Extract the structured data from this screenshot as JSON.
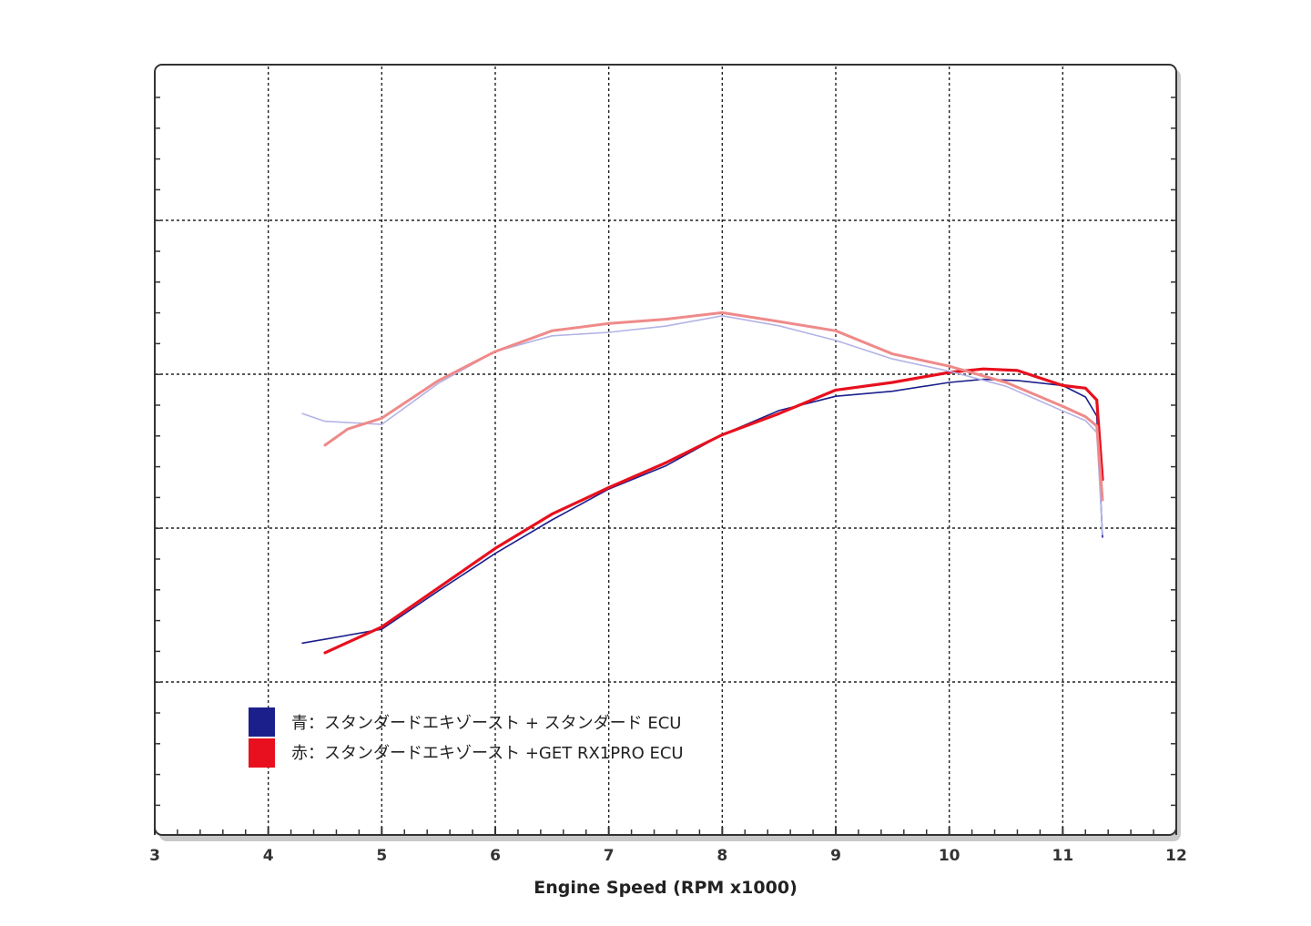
{
  "chart_data": {
    "type": "line",
    "title": "",
    "xlabel": "Engine Speed (RPM x1000)",
    "ylabel": "",
    "xlim": [
      3,
      12
    ],
    "x_ticks": [
      "3",
      "4",
      "5",
      "6",
      "7",
      "8",
      "9",
      "10",
      "11",
      "12"
    ],
    "grid": true,
    "legend_position": "bottom-left",
    "legend": [
      {
        "label": "青：スタンダードエキゾースト + スタンダード ECU",
        "color": "#1b1f8c"
      },
      {
        "label": "赤：スタンダードエキゾースト +GET RX1PRO ECU",
        "color": "#e8101e"
      }
    ],
    "series": [
      {
        "name": "青：スタンダードエキゾースト + スタンダード ECU",
        "color": "#1b1f8c",
        "quantity": "power",
        "points": [
          [
            4.3,
            0.498
          ],
          [
            4.5,
            0.508
          ],
          [
            5.0,
            0.534
          ],
          [
            5.5,
            0.634
          ],
          [
            6.0,
            0.731
          ],
          [
            6.5,
            0.818
          ],
          [
            7.0,
            0.898
          ],
          [
            7.5,
            0.958
          ],
          [
            8.0,
            1.039
          ],
          [
            8.5,
            1.102
          ],
          [
            9.0,
            1.139
          ],
          [
            9.5,
            1.152
          ],
          [
            10.0,
            1.175
          ],
          [
            10.3,
            1.183
          ],
          [
            10.6,
            1.18
          ],
          [
            11.0,
            1.167
          ],
          [
            11.2,
            1.137
          ],
          [
            11.3,
            1.088
          ],
          [
            11.35,
            0.773
          ]
        ]
      },
      {
        "name": "赤：スタンダードエキゾースト +GET RX1PRO ECU",
        "color": "#e8101e",
        "quantity": "power",
        "points": [
          [
            4.5,
            0.473
          ],
          [
            5.0,
            0.54
          ],
          [
            5.5,
            0.642
          ],
          [
            6.0,
            0.744
          ],
          [
            6.5,
            0.833
          ],
          [
            7.0,
            0.902
          ],
          [
            7.5,
            0.966
          ],
          [
            8.0,
            1.039
          ],
          [
            8.5,
            1.094
          ],
          [
            9.0,
            1.155
          ],
          [
            9.5,
            1.175
          ],
          [
            10.0,
            1.201
          ],
          [
            10.3,
            1.21
          ],
          [
            10.6,
            1.206
          ],
          [
            11.0,
            1.167
          ],
          [
            11.2,
            1.16
          ],
          [
            11.3,
            1.129
          ],
          [
            11.35,
            0.923
          ]
        ]
      },
      {
        "name": "",
        "color": "#b3b3e6",
        "quantity": "torque",
        "points": [
          [
            4.3,
            1.094
          ],
          [
            4.5,
            1.074
          ],
          [
            5.0,
            1.066
          ],
          [
            5.5,
            1.173
          ],
          [
            6.0,
            1.255
          ],
          [
            6.5,
            1.296
          ],
          [
            7.0,
            1.305
          ],
          [
            7.5,
            1.321
          ],
          [
            8.0,
            1.348
          ],
          [
            8.5,
            1.322
          ],
          [
            9.0,
            1.284
          ],
          [
            9.5,
            1.236
          ],
          [
            10.0,
            1.204
          ],
          [
            10.5,
            1.165
          ],
          [
            11.0,
            1.101
          ],
          [
            11.2,
            1.076
          ],
          [
            11.3,
            1.045
          ],
          [
            11.35,
            0.78
          ]
        ]
      },
      {
        "name": "",
        "color": "#ef8a8a",
        "quantity": "torque",
        "points": [
          [
            4.5,
            1.012
          ],
          [
            4.7,
            1.054
          ],
          [
            5.0,
            1.082
          ],
          [
            5.5,
            1.18
          ],
          [
            6.0,
            1.255
          ],
          [
            6.5,
            1.309
          ],
          [
            7.0,
            1.328
          ],
          [
            7.5,
            1.339
          ],
          [
            8.0,
            1.356
          ],
          [
            8.5,
            1.333
          ],
          [
            9.0,
            1.309
          ],
          [
            9.5,
            1.249
          ],
          [
            10.0,
            1.217
          ],
          [
            10.5,
            1.175
          ],
          [
            11.0,
            1.113
          ],
          [
            11.2,
            1.086
          ],
          [
            11.3,
            1.062
          ],
          [
            11.35,
            0.87
          ]
        ]
      }
    ]
  }
}
